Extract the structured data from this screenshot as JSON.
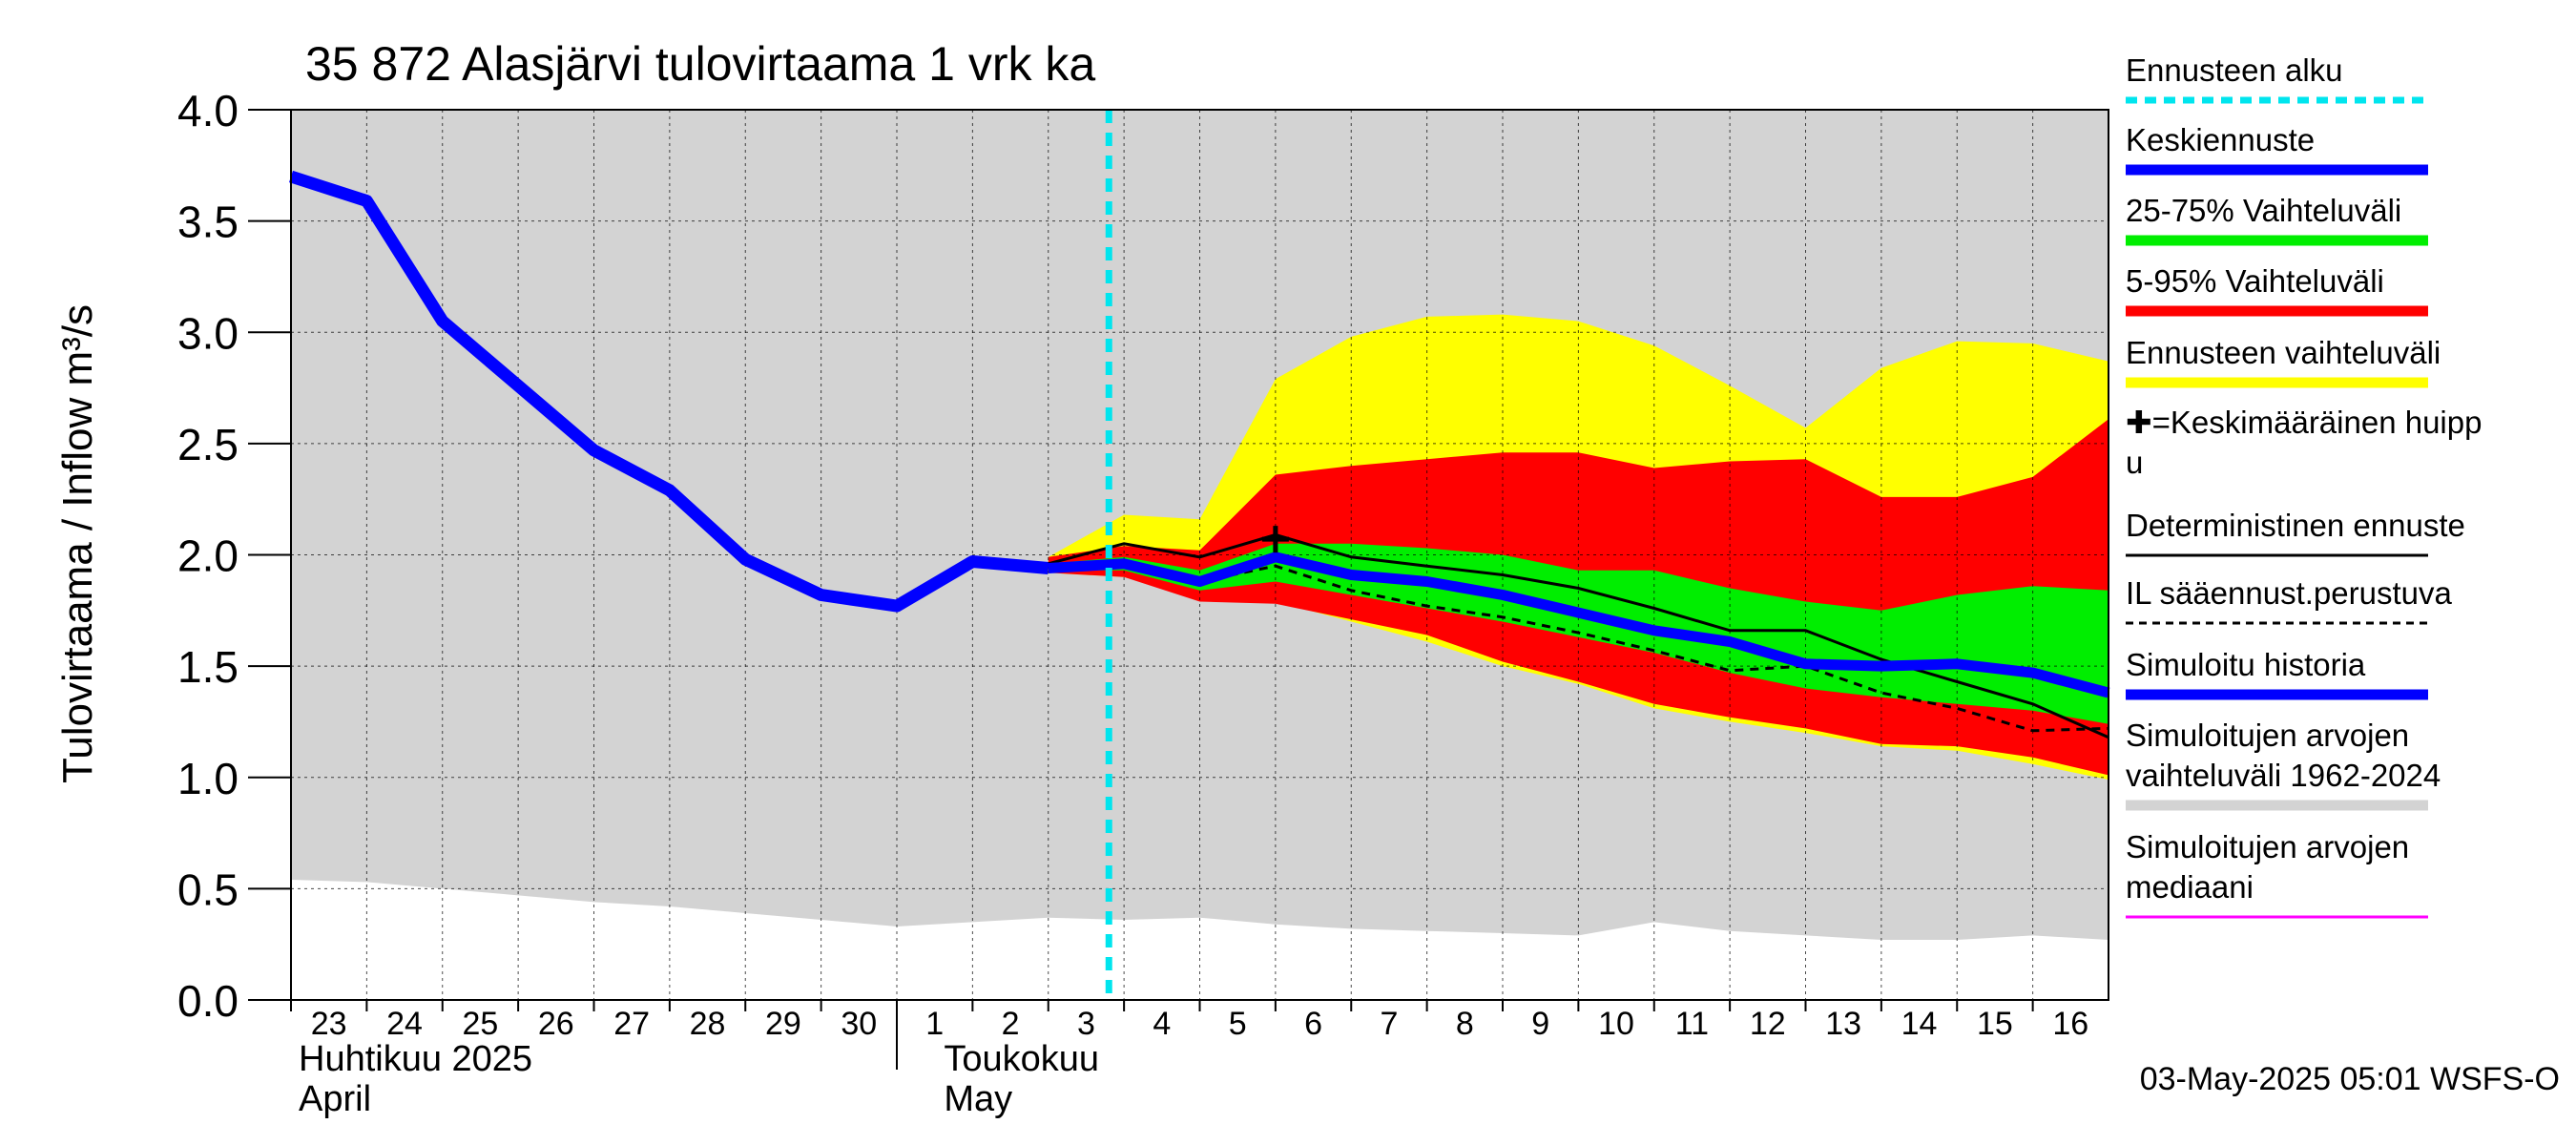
{
  "chart_data": {
    "type": "area",
    "title": "35 872 Alasjärvi tulovirtaama 1 vrk ka",
    "ylabel": "Tulovirtaama / Inflow    m³/s",
    "ylim": [
      0,
      4
    ],
    "y_ticks": [
      "0.0",
      "0.5",
      "1.0",
      "1.5",
      "2.0",
      "2.5",
      "3.0",
      "3.5",
      "4.0"
    ],
    "x_ticks": [
      "23",
      "24",
      "25",
      "26",
      "27",
      "28",
      "29",
      "30",
      "1",
      "2",
      "3",
      "4",
      "5",
      "6",
      "7",
      "8",
      "9",
      "10",
      "11",
      "12",
      "13",
      "14",
      "15",
      "16"
    ],
    "month_labels": [
      {
        "fi": "Huhtikuu  2025",
        "en": "April"
      },
      {
        "fi": "Toukokuu",
        "en": "May"
      }
    ],
    "footer": "03-May-2025 05:01 WSFS-O",
    "grid": true,
    "forecast_start_day": 10.8,
    "colors": {
      "sim_range": "#d3d3d3",
      "forecast_range": "#ffff00",
      "p5_95": "#ff0000",
      "p25_75": "#00ee00",
      "mean_forecast": "#0000ff",
      "sim_history": "#0000ff",
      "forecast_start": "#00e5ee",
      "median": "#ff00ff"
    },
    "legend": {
      "position": "right",
      "items": [
        {
          "label": "Ennusteen alku",
          "style": "dashed",
          "color": "#00e5ee"
        },
        {
          "label": "Keskiennuste",
          "style": "thick",
          "color": "#0000ff"
        },
        {
          "label": "25-75% Vaihteluväli",
          "style": "thick",
          "color": "#00ee00"
        },
        {
          "label": "5-95% Vaihteluväli",
          "style": "thick",
          "color": "#ff0000"
        },
        {
          "label": "Ennusteen vaihteluväli",
          "style": "thick",
          "color": "#ffff00"
        },
        {
          "label": "✚=Keskimääräinen huipp\nu",
          "style": "none",
          "color": "#000000"
        },
        {
          "label": "Deterministinen ennuste",
          "style": "thin",
          "color": "#000000"
        },
        {
          "label": "IL sääennust.perustuva",
          "style": "dotted",
          "color": "#000000"
        },
        {
          "label": "Simuloitu historia",
          "style": "thick",
          "color": "#0000ff"
        },
        {
          "label": "Simuloitujen arvojen\nvaihteluväli 1962-2024",
          "style": "thick",
          "color": "#d3d3d3"
        },
        {
          "label": "Simuloitujen arvojen\nmediaani",
          "style": "thin",
          "color": "#ff00ff"
        }
      ]
    },
    "sim_range": {
      "x": [
        0,
        1,
        2,
        3,
        4,
        5,
        6,
        7,
        8,
        9,
        10,
        11,
        12,
        13,
        14,
        15,
        16,
        17,
        18,
        19,
        20,
        21,
        22,
        23,
        24
      ],
      "lower": [
        0.54,
        0.53,
        0.5,
        0.47,
        0.44,
        0.42,
        0.39,
        0.36,
        0.33,
        0.35,
        0.37,
        0.36,
        0.37,
        0.34,
        0.32,
        0.31,
        0.3,
        0.29,
        0.35,
        0.31,
        0.29,
        0.27,
        0.27,
        0.29,
        0.27
      ],
      "upper": [
        4.0,
        4.0,
        4.0,
        4.0,
        4.0,
        4.0,
        4.0,
        4.0,
        4.0,
        4.0,
        4.0,
        4.0,
        4.0,
        4.0,
        4.0,
        4.0,
        4.0,
        4.0,
        4.0,
        4.0,
        4.0,
        4.0,
        4.0,
        4.0,
        4.0
      ]
    },
    "series": [
      {
        "name": "Simuloitu historia",
        "x": [
          0,
          1,
          2,
          3,
          4,
          5,
          6,
          7,
          8,
          9,
          10
        ],
        "values": [
          3.7,
          3.59,
          3.05,
          2.76,
          2.47,
          2.29,
          1.98,
          1.82,
          1.77,
          1.97,
          1.94
        ]
      },
      {
        "name": "Keskiennuste",
        "x": [
          10,
          11,
          12,
          13,
          14,
          15,
          16,
          17,
          18,
          19,
          20,
          21,
          22,
          23,
          24
        ],
        "values": [
          1.94,
          1.96,
          1.88,
          1.99,
          1.91,
          1.88,
          1.82,
          1.74,
          1.66,
          1.61,
          1.51,
          1.5,
          1.51,
          1.47,
          1.38
        ]
      },
      {
        "name": "Deterministinen ennuste",
        "x": [
          10,
          11,
          12,
          13,
          14,
          15,
          16,
          17,
          18,
          19,
          20,
          21,
          22,
          23,
          24
        ],
        "values": [
          1.96,
          2.05,
          1.99,
          2.09,
          1.99,
          1.95,
          1.91,
          1.85,
          1.76,
          1.66,
          1.66,
          1.53,
          1.43,
          1.33,
          1.18
        ]
      },
      {
        "name": "IL sääennust.perustuva",
        "x": [
          10,
          11,
          12,
          13,
          14,
          15,
          16,
          17,
          18,
          19,
          20,
          21,
          22,
          23,
          24
        ],
        "values": [
          1.94,
          1.95,
          1.88,
          1.95,
          1.84,
          1.77,
          1.72,
          1.65,
          1.57,
          1.48,
          1.5,
          1.38,
          1.31,
          1.21,
          1.22
        ]
      }
    ],
    "bands": [
      {
        "name": "Ennusteen vaihteluväli",
        "x": [
          10,
          11,
          12,
          13,
          14,
          15,
          16,
          17,
          18,
          19,
          20,
          21,
          22,
          23,
          24
        ],
        "lower": [
          1.92,
          1.9,
          1.8,
          1.79,
          1.7,
          1.61,
          1.5,
          1.42,
          1.31,
          1.25,
          1.2,
          1.14,
          1.12,
          1.06,
          0.99
        ],
        "upper": [
          1.99,
          2.18,
          2.16,
          2.79,
          2.98,
          3.07,
          3.08,
          3.05,
          2.94,
          2.76,
          2.57,
          2.84,
          2.96,
          2.95,
          2.87
        ]
      },
      {
        "name": "5-95% Vaihteluväli",
        "x": [
          10,
          11,
          12,
          13,
          14,
          15,
          16,
          17,
          18,
          19,
          20,
          21,
          22,
          23,
          24
        ],
        "lower": [
          1.92,
          1.9,
          1.79,
          1.78,
          1.71,
          1.64,
          1.52,
          1.43,
          1.33,
          1.27,
          1.22,
          1.15,
          1.14,
          1.09,
          1.01
        ],
        "upper": [
          1.99,
          2.04,
          2.02,
          2.36,
          2.4,
          2.43,
          2.46,
          2.46,
          2.39,
          2.42,
          2.43,
          2.26,
          2.26,
          2.35,
          2.61
        ]
      },
      {
        "name": "25-75% Vaihteluväli",
        "x": [
          10,
          11,
          12,
          13,
          14,
          15,
          16,
          17,
          18,
          19,
          20,
          21,
          22,
          23,
          24
        ],
        "lower": [
          1.93,
          1.93,
          1.84,
          1.88,
          1.82,
          1.76,
          1.7,
          1.63,
          1.56,
          1.47,
          1.4,
          1.36,
          1.33,
          1.3,
          1.24
        ],
        "upper": [
          1.96,
          1.99,
          1.93,
          2.05,
          2.05,
          2.03,
          2.0,
          1.93,
          1.93,
          1.85,
          1.79,
          1.75,
          1.82,
          1.86,
          1.84
        ]
      }
    ],
    "mean_peak": {
      "x": 13,
      "y": 2.07
    }
  }
}
